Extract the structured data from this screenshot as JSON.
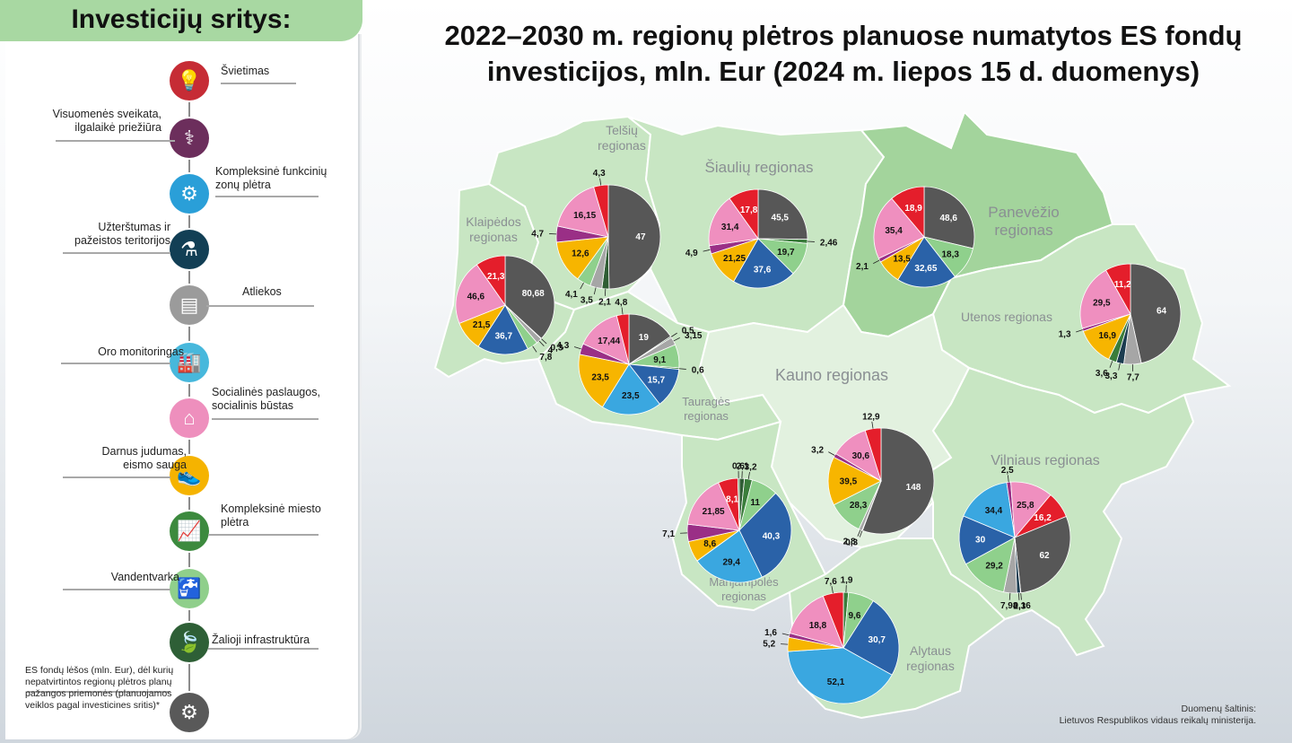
{
  "sidebar": {
    "title": "Investicijų sritys:",
    "categories": [
      {
        "label": "Švietimas",
        "icon": "lightbulb-icon",
        "color": "#c62c35"
      },
      {
        "label": "Visuomenės sveikata, ilgalaikė priežiūra",
        "icon": "health-icon",
        "color": "#6c2e5c"
      },
      {
        "label": "Kompleksinė funkcinių zonų plėtra",
        "icon": "network-icon",
        "color": "#2a9fd8"
      },
      {
        "label": "Užterštumas ir pažeistos teritorijos",
        "icon": "flask-icon",
        "color": "#123f55"
      },
      {
        "label": "Atliekos",
        "icon": "bin-icon",
        "color": "#9b9b9b"
      },
      {
        "label": "Oro monitoringas",
        "icon": "factory-icon",
        "color": "#47b8dc"
      },
      {
        "label": "Socialinės paslaugos, socialinis būstas",
        "icon": "house-icon",
        "color": "#ee8fbd"
      },
      {
        "label": "Darnus judumas, eismo sauga",
        "icon": "shoe-icon",
        "color": "#f5b300"
      },
      {
        "label": "Kompleksinė miesto plėtra",
        "icon": "growth-chart-icon",
        "color": "#3c8a3e"
      },
      {
        "label": "Vandentvarka",
        "icon": "water-tap-icon",
        "color": "#8fcf8b"
      },
      {
        "label": "Žalioji infrastruktūra",
        "icon": "leaf-icon",
        "color": "#2e5f36"
      },
      {
        "label": "ES fondų lėšos (mln. Eur), dėl kurių nepatvirtintos regionų plėtros planų pažangos priemonės (planuojamos veiklos pagal investicines sritis)*",
        "icon": "gear-hands-icon",
        "color": "#595959"
      }
    ]
  },
  "title_line1": "2022–2030 m. regionų plėtros planuose numatytos ES fondų",
  "title_line2": "investicijos, mln. Eur (2024 m. liepos 15 d. duomenys)",
  "colors": {
    "edu": "#e41e2b",
    "health": "#6b2c5e",
    "zone": "#9a2f86",
    "pollution": "#1b3c50",
    "waste": "#a6a6a6",
    "air": "#3aa7e0",
    "social": "#ef8fbf",
    "mobility": "#f7b500",
    "urban": "#3a7d3b",
    "water": "#8fd08c",
    "green": "#2f5d34",
    "unapproved": "#575757",
    "blue": "#2a62a8",
    "map_light": "#c8e6c3",
    "map_dark": "#a3d49c"
  },
  "regions": [
    {
      "name": "Telšių regionas",
      "name_lines": [
        "Telšių",
        "regionas"
      ]
    },
    {
      "name": "Šiaulių regionas",
      "name_lines": [
        "Šiaulių regionas"
      ]
    },
    {
      "name": "Panevėžio regionas",
      "name_lines": [
        "Panevėžio",
        "regionas"
      ]
    },
    {
      "name": "Klaipėdos regionas",
      "name_lines": [
        "Klaipėdos",
        "regionas"
      ]
    },
    {
      "name": "Utenos regionas",
      "name_lines": [
        "Utenos regionas"
      ]
    },
    {
      "name": "Kauno regionas",
      "name_lines": [
        "Kauno regionas"
      ]
    },
    {
      "name": "Tauragės regionas",
      "name_lines": [
        "Tauragės",
        "regionas"
      ]
    },
    {
      "name": "Vilniaus regionas",
      "name_lines": [
        "Vilniaus regionas"
      ]
    },
    {
      "name": "Marijampolės regionas",
      "name_lines": [
        "Marijampolės",
        "regionas"
      ]
    },
    {
      "name": "Alytaus regionas",
      "name_lines": [
        "Alytaus",
        "regionas"
      ]
    }
  ],
  "pies": [
    {
      "region": "Telšių",
      "slices": [
        {
          "v": 47,
          "c": "unapproved",
          "label": "47"
        },
        {
          "v": 2.1,
          "c": "green",
          "label": "2,1"
        },
        {
          "v": 3.5,
          "c": "waste",
          "label": "3,5"
        },
        {
          "v": 4.1,
          "c": "water",
          "label": "4,1"
        },
        {
          "v": 12.6,
          "c": "mobility",
          "label": "12,6"
        },
        {
          "v": 4.7,
          "c": "zone",
          "label": "4,7"
        },
        {
          "v": 16.15,
          "c": "social",
          "label": "16,15"
        },
        {
          "v": 4.3,
          "c": "edu",
          "label": "4,3"
        }
      ]
    },
    {
      "region": "Šiaulių",
      "slices": [
        {
          "v": 45.5,
          "c": "unapproved",
          "label": "45,5"
        },
        {
          "v": 2.46,
          "c": "urban",
          "label": "2,46"
        },
        {
          "v": 19.7,
          "c": "water",
          "label": "19,7"
        },
        {
          "v": 37.6,
          "c": "blue",
          "label": "37,6"
        },
        {
          "v": 21.25,
          "c": "mobility",
          "label": "21,25"
        },
        {
          "v": 4.9,
          "c": "zone",
          "label": "4,9"
        },
        {
          "v": 31.4,
          "c": "social",
          "label": "31,4"
        },
        {
          "v": 17.8,
          "c": "edu",
          "label": "17,8"
        }
      ]
    },
    {
      "region": "Panevėžio",
      "slices": [
        {
          "v": 48.6,
          "c": "unapproved",
          "label": "48,6"
        },
        {
          "v": 18.3,
          "c": "water",
          "label": "18,3"
        },
        {
          "v": 32.65,
          "c": "blue",
          "label": "32,65"
        },
        {
          "v": 13.5,
          "c": "mobility",
          "label": "13,5"
        },
        {
          "v": 2.1,
          "c": "zone",
          "label": "2,1"
        },
        {
          "v": 35.4,
          "c": "social",
          "label": "35,4"
        },
        {
          "v": 18.9,
          "c": "edu",
          "label": "18,9"
        }
      ]
    },
    {
      "region": "Klaipėdos",
      "slices": [
        {
          "v": 80.68,
          "c": "unapproved",
          "label": "80,68"
        },
        {
          "v": 0.3,
          "c": "green",
          "label": "0,3"
        },
        {
          "v": 4,
          "c": "waste",
          "label": "4"
        },
        {
          "v": 7.8,
          "c": "water",
          "label": "7,8"
        },
        {
          "v": 36.7,
          "c": "blue",
          "label": "36,7"
        },
        {
          "v": 21.5,
          "c": "mobility",
          "label": "21,5"
        },
        {
          "v": 46.6,
          "c": "social",
          "label": "46,6"
        },
        {
          "v": 21.3,
          "c": "edu",
          "label": "21,3"
        }
      ]
    },
    {
      "region": "Utenos",
      "slices": [
        {
          "v": 64,
          "c": "unapproved",
          "label": "64"
        },
        {
          "v": 7.7,
          "c": "waste",
          "label": "7,7"
        },
        {
          "v": 3.3,
          "c": "pollution",
          "label": "3,3"
        },
        {
          "v": 3.6,
          "c": "urban",
          "label": "3,6"
        },
        {
          "v": 16.9,
          "c": "mobility",
          "label": "16,9"
        },
        {
          "v": 1.3,
          "c": "zone",
          "label": "1,3"
        },
        {
          "v": 29.5,
          "c": "social",
          "label": "29,5"
        },
        {
          "v": 11.2,
          "c": "edu",
          "label": "11,2"
        }
      ]
    },
    {
      "region": "Tauragės",
      "slices": [
        {
          "v": 19,
          "c": "unapproved",
          "label": "19"
        },
        {
          "v": 0.5,
          "c": "green",
          "label": "0,5"
        },
        {
          "v": 3.15,
          "c": "waste",
          "label": "3,15"
        },
        {
          "v": 9.1,
          "c": "water",
          "label": "9,1"
        },
        {
          "v": 0.6,
          "c": "urban",
          "label": "0,6"
        },
        {
          "v": 15.7,
          "c": "blue",
          "label": "15,7"
        },
        {
          "v": 23.5,
          "c": "air",
          "label": "23,5"
        },
        {
          "v": 23.5,
          "c": "mobility",
          "label": "23,5"
        },
        {
          "v": 4.3,
          "c": "zone",
          "label": "4,3"
        },
        {
          "v": 17.44,
          "c": "social",
          "label": "17,44"
        },
        {
          "v": 4.8,
          "c": "edu",
          "label": "4,8"
        }
      ]
    },
    {
      "region": "Kauno",
      "slices": [
        {
          "v": 148,
          "c": "unapproved",
          "label": "148"
        },
        {
          "v": 0.3,
          "c": "green",
          "label": "0,3"
        },
        {
          "v": 2.8,
          "c": "waste",
          "label": "2,8"
        },
        {
          "v": 28.3,
          "c": "water",
          "label": "28,3"
        },
        {
          "v": 39.5,
          "c": "mobility",
          "label": "39,5"
        },
        {
          "v": 3.2,
          "c": "zone",
          "label": "3,2"
        },
        {
          "v": 30.6,
          "c": "social",
          "label": "30,6"
        },
        {
          "v": 12.9,
          "c": "edu",
          "label": "12,9"
        }
      ]
    },
    {
      "region": "Vilniaus",
      "slices": [
        {
          "v": 16.2,
          "c": "edu",
          "label": "16,2"
        },
        {
          "v": 62,
          "c": "unapproved",
          "label": "62"
        },
        {
          "v": 0.16,
          "c": "green",
          "label": "0,16"
        },
        {
          "v": 2.3,
          "c": "pollution",
          "label": "2,3"
        },
        {
          "v": 7.98,
          "c": "waste",
          "label": "7,98"
        },
        {
          "v": 29.2,
          "c": "water",
          "label": "29,2"
        },
        {
          "v": 30,
          "c": "blue",
          "label": "30"
        },
        {
          "v": 34.4,
          "c": "air",
          "label": "34,4"
        },
        {
          "v": 2.5,
          "c": "zone",
          "label": "2,5"
        },
        {
          "v": 25.8,
          "c": "social",
          "label": "25,8"
        }
      ]
    },
    {
      "region": "Marijampolės",
      "slices": [
        {
          "v": 2.1,
          "c": "green",
          "label": "2,1"
        },
        {
          "v": 3.2,
          "c": "urban",
          "label": "3,2"
        },
        {
          "v": 11,
          "c": "water",
          "label": "11"
        },
        {
          "v": 40.3,
          "c": "blue",
          "label": "40,3"
        },
        {
          "v": 29.4,
          "c": "air",
          "label": "29,4"
        },
        {
          "v": 8.6,
          "c": "mobility",
          "label": "8,6"
        },
        {
          "v": 7.1,
          "c": "zone",
          "label": "7,1"
        },
        {
          "v": 21.85,
          "c": "social",
          "label": "21,85"
        },
        {
          "v": 8.1,
          "c": "edu",
          "label": "8,1"
        },
        {
          "v": 0.6,
          "c": "urban",
          "label": "0,6"
        }
      ]
    },
    {
      "region": "Alytaus",
      "slices": [
        {
          "v": 1.9,
          "c": "urban",
          "label": "1,9"
        },
        {
          "v": 9.6,
          "c": "water",
          "label": "9,6"
        },
        {
          "v": 30.7,
          "c": "blue",
          "label": "30,7"
        },
        {
          "v": 52.1,
          "c": "air",
          "label": "52,1"
        },
        {
          "v": 5.2,
          "c": "mobility",
          "label": "5,2"
        },
        {
          "v": 1.6,
          "c": "zone",
          "label": "1,6"
        },
        {
          "v": 18.8,
          "c": "social",
          "label": "18,8"
        },
        {
          "v": 7.6,
          "c": "edu",
          "label": "7,6"
        }
      ]
    }
  ],
  "source_line1": "Duomenų šaltinis:",
  "source_line2": "Lietuvos Respublikos vidaus reikalų ministerija."
}
